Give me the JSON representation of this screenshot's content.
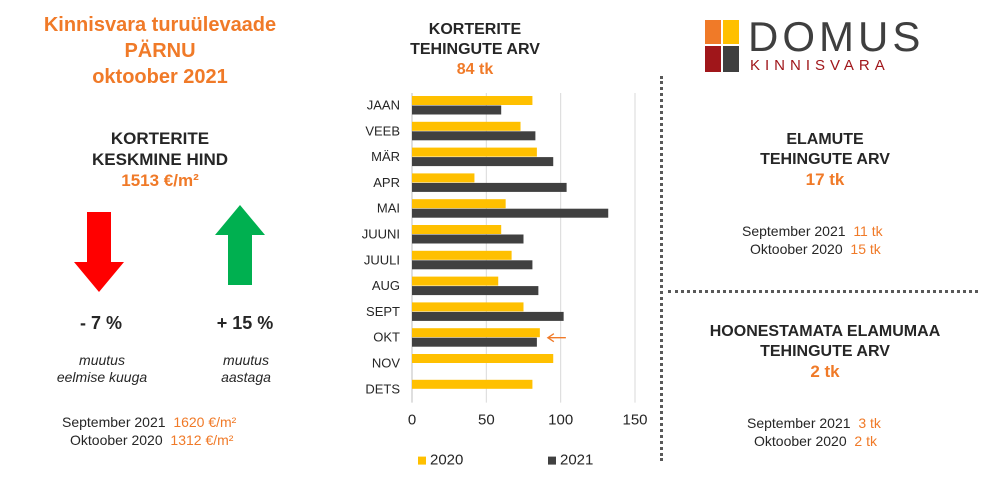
{
  "header": {
    "title_line1": "Kinnisvara turuülevaade",
    "title_line2": "PÄRNU",
    "title_line3": "oktoober 2021"
  },
  "avg_price": {
    "title_line1": "KORTERITE",
    "title_line2": "KESKMINE HIND",
    "value": "1513 €/m²",
    "month_change": {
      "value": "- 7 %",
      "label_line1": "muutus",
      "label_line2": "eelmise kuuga",
      "direction": "down",
      "color": "#ff0000"
    },
    "year_change": {
      "value": "+ 15 %",
      "label_line1": "muutus",
      "label_line2": "aastaga",
      "direction": "up",
      "color": "#00b050"
    },
    "comparison": [
      {
        "label": "September 2021",
        "value": "1620 €/m²"
      },
      {
        "label": "Oktoober 2020",
        "value": "1312 €/m²"
      }
    ]
  },
  "apartments_chart": {
    "title_line1": "KORTERITE",
    "title_line2": "TEHINGUTE ARV",
    "value": "84 tk"
  },
  "chart_data": {
    "type": "bar",
    "orientation": "horizontal",
    "categories": [
      "JAAN",
      "VEEB",
      "MÄR",
      "APR",
      "MAI",
      "JUUNI",
      "JUULI",
      "AUG",
      "SEPT",
      "OKT",
      "NOV",
      "DETS"
    ],
    "series": [
      {
        "name": "2020",
        "color": "#ffc000",
        "values": [
          81,
          73,
          84,
          42,
          63,
          60,
          67,
          58,
          75,
          86,
          95,
          81
        ]
      },
      {
        "name": "2021",
        "color": "#404040",
        "values": [
          60,
          83,
          95,
          104,
          132,
          75,
          81,
          85,
          102,
          84,
          null,
          null
        ]
      }
    ],
    "xlim": [
      0,
      150
    ],
    "xticks": [
      0,
      50,
      100,
      150
    ],
    "grid": true,
    "legend_position": "bottom",
    "highlight_category": "OKT"
  },
  "houses": {
    "title_line1": "ELAMUTE",
    "title_line2": "TEHINGUTE ARV",
    "value": "17 tk",
    "comparison": [
      {
        "label": "September 2021",
        "value": "11 tk"
      },
      {
        "label": "Oktoober 2020",
        "value": "15 tk"
      }
    ]
  },
  "land": {
    "title_line1": "HOONESTAMATA ELAMUMAA",
    "title_line2": "TEHINGUTE ARV",
    "value": "2 tk",
    "comparison": [
      {
        "label": "September 2021",
        "value": "3 tk"
      },
      {
        "label": "Oktoober 2020",
        "value": "2 tk"
      }
    ]
  },
  "logo": {
    "word": "DOMUS",
    "sub": "KINNISVARA",
    "colors": {
      "orange": "#f07a28",
      "yellow": "#ffc000",
      "red": "#a0161a",
      "dark": "#3f3f3f"
    }
  }
}
